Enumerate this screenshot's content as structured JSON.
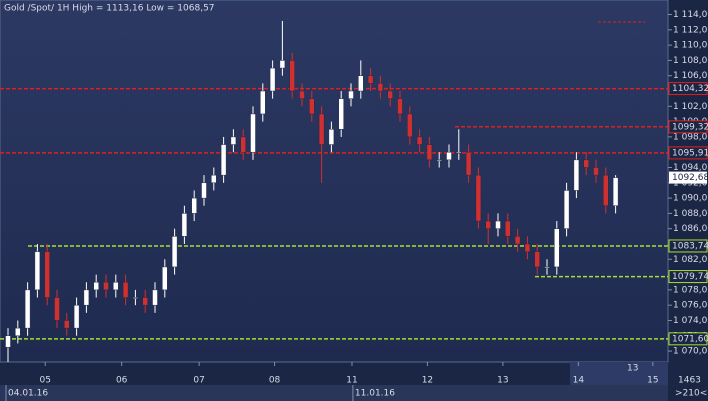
{
  "chart_data": {
    "type": "candlestick",
    "title": "Gold /Spot/ 1H High = 1113,16 Low = 1068,57",
    "up_color": "#ffffff",
    "down_color": "#d03030",
    "grid": false,
    "open": [
      1070.5,
      1072,
      1073,
      1078,
      1083,
      1077,
      1074,
      1073,
      1076,
      1078,
      1079,
      1078,
      1079,
      1077,
      1077,
      1076,
      1078,
      1081,
      1085,
      1088,
      1090,
      1092,
      1093,
      1097,
      1098,
      1096,
      1101,
      1104,
      1107,
      1108,
      1104,
      1103,
      1101,
      1097,
      1099,
      1103,
      1104,
      1106,
      1105,
      1104,
      1103,
      1101,
      1098,
      1097,
      1095,
      1095,
      1096,
      1096,
      1093,
      1087,
      1086,
      1087,
      1085,
      1084,
      1083,
      1081,
      1081,
      1086,
      1091,
      1095,
      1094,
      1093,
      1089
    ],
    "high": [
      1073,
      1074,
      1079,
      1084,
      1084,
      1078,
      1075,
      1077,
      1079,
      1080,
      1080,
      1080,
      1080,
      1078,
      1078,
      1079,
      1082,
      1086,
      1089,
      1091,
      1093,
      1094,
      1098,
      1099,
      1099,
      1102,
      1105,
      1108,
      1113.16,
      1109,
      1105,
      1104,
      1102,
      1100,
      1104,
      1105,
      1108,
      1107,
      1106,
      1105,
      1104,
      1102,
      1099,
      1098,
      1096,
      1097,
      1099,
      1097,
      1094,
      1088,
      1088,
      1088,
      1086,
      1085,
      1084,
      1082,
      1087,
      1092,
      1096,
      1096,
      1095,
      1094,
      1093
    ],
    "low": [
      1068.57,
      1071,
      1072,
      1077,
      1076,
      1073,
      1072,
      1072,
      1075,
      1077,
      1077,
      1077,
      1076,
      1076,
      1075,
      1075,
      1077,
      1080,
      1084,
      1087,
      1089,
      1091,
      1092,
      1096,
      1095,
      1095,
      1100,
      1103,
      1106,
      1103,
      1102,
      1100,
      1092,
      1096,
      1098,
      1102,
      1103,
      1104,
      1103,
      1102,
      1100,
      1097,
      1096,
      1094,
      1094,
      1094,
      1095,
      1092,
      1086,
      1084,
      1085,
      1084,
      1083,
      1082,
      1080,
      1080,
      1080,
      1085,
      1090,
      1093,
      1092,
      1088,
      1088
    ],
    "close": [
      1072,
      1073,
      1078,
      1083,
      1077,
      1074,
      1073,
      1076,
      1078,
      1079,
      1078,
      1079,
      1077,
      1077,
      1076,
      1078,
      1081,
      1085,
      1088,
      1090,
      1092,
      1093,
      1097,
      1098,
      1096,
      1101,
      1104,
      1107,
      1108,
      1104,
      1103,
      1101,
      1097,
      1099,
      1103,
      1104,
      1106,
      1105,
      1104,
      1103,
      1101,
      1098,
      1097,
      1095,
      1095,
      1096,
      1096,
      1093,
      1087,
      1086,
      1087,
      1085,
      1084,
      1083,
      1081,
      1081,
      1086,
      1091,
      1095,
      1094,
      1093,
      1089,
      1092.68
    ],
    "ylim": [
      1068.57,
      1115.9
    ],
    "yticks": [
      {
        "value": 1070,
        "label": "1 070,00"
      },
      {
        "value": 1072,
        "label": "1 072,00"
      },
      {
        "value": 1074,
        "label": "1 074,00"
      },
      {
        "value": 1076,
        "label": "1 076,00"
      },
      {
        "value": 1078,
        "label": "1 078,00"
      },
      {
        "value": 1080,
        "label": "1 080,00"
      },
      {
        "value": 1082,
        "label": "1 082,00"
      },
      {
        "value": 1084,
        "label": "1 084,00"
      },
      {
        "value": 1086,
        "label": "1 086,00"
      },
      {
        "value": 1088,
        "label": "1 088,00"
      },
      {
        "value": 1090,
        "label": "1 090,00"
      },
      {
        "value": 1092,
        "label": "1 092,00"
      },
      {
        "value": 1094,
        "label": "1 094,00"
      },
      {
        "value": 1096,
        "label": "1 096,00"
      },
      {
        "value": 1098,
        "label": "1 098,00"
      },
      {
        "value": 1100,
        "label": "1 100,00"
      },
      {
        "value": 1102,
        "label": "1 102,00"
      },
      {
        "value": 1104,
        "label": "1 104,00"
      },
      {
        "value": 1106,
        "label": "1 106,00"
      },
      {
        "value": 1108,
        "label": "1 108,00"
      },
      {
        "value": 1110,
        "label": "1 110,00"
      },
      {
        "value": 1112,
        "label": "1 112,00"
      },
      {
        "value": 1114,
        "label": "1 114,00"
      }
    ],
    "xticks": [
      {
        "value": 3.8,
        "label": "05"
      },
      {
        "value": 11.6,
        "label": "06"
      },
      {
        "value": 19.5,
        "label": "07"
      },
      {
        "value": 27.2,
        "label": "08"
      },
      {
        "value": 35.1,
        "label": "11"
      },
      {
        "value": 42.8,
        "label": "12"
      },
      {
        "value": 50.5,
        "label": "13"
      },
      {
        "value": 58.2,
        "label": "14"
      },
      {
        "value": 65.8,
        "label": "15"
      }
    ],
    "date_ticks": [
      {
        "value": 0,
        "label": "04.01.16"
      },
      {
        "value": 35.4,
        "label": "11.01.16"
      }
    ],
    "levels": [
      {
        "value": 1104.32,
        "label": "1104,32",
        "color": "#e02020"
      },
      {
        "value": 1099.32,
        "label": "1099,32",
        "color": "#e02020"
      },
      {
        "value": 1095.91,
        "label": "1095,91",
        "color": "#e02020"
      },
      {
        "value": 1083.74,
        "label": "1083,74",
        "color": "#a8e030"
      },
      {
        "value": 1079.74,
        "label": "1079,74",
        "color": "#a8e030"
      },
      {
        "value": 1071.6,
        "label": "1071,60",
        "color": "#a8e030"
      }
    ],
    "last_price": {
      "value": 1092.68,
      "label": "1092,68"
    },
    "annotation": "13",
    "footer": [
      "1463",
      ">210<"
    ]
  }
}
